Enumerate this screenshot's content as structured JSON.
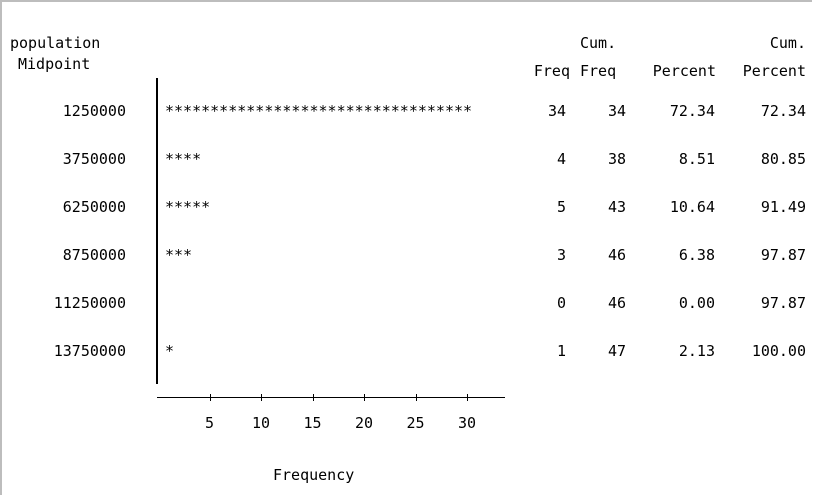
{
  "header": {
    "category_label_line1": "population",
    "category_label_line2": "Midpoint",
    "freq": "Freq",
    "cum_freq_line1": "Cum.",
    "cum_freq_line2": "Freq",
    "percent": "Percent",
    "cum_percent_line1": "Cum.",
    "cum_percent_line2": "Percent"
  },
  "chart_data": {
    "type": "bar",
    "orientation": "horizontal",
    "bar_char": "*",
    "categories": [
      "1250000",
      "3750000",
      "6250000",
      "8750000",
      "11250000",
      "13750000"
    ],
    "values": [
      34,
      4,
      5,
      3,
      0,
      1
    ],
    "xlabel": "Frequency",
    "ylabel": "population Midpoint",
    "xticks": [
      "5",
      "10",
      "15",
      "20",
      "25",
      "30"
    ],
    "table": {
      "freq": [
        "34",
        "4",
        "5",
        "3",
        "0",
        "1"
      ],
      "cum_freq": [
        "34",
        "38",
        "43",
        "46",
        "46",
        "47"
      ],
      "percent": [
        "72.34",
        "8.51",
        "10.64",
        "6.38",
        "0.00",
        "2.13"
      ],
      "cum_percent": [
        "72.34",
        "80.85",
        "91.49",
        "97.87",
        "97.87",
        "100.00"
      ]
    }
  }
}
